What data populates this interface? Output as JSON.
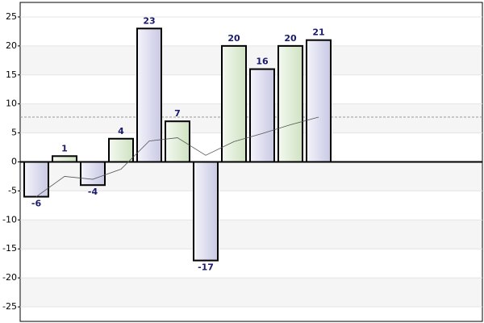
{
  "chart_data": {
    "type": "bar",
    "values": [
      -6,
      1,
      -4,
      4,
      23,
      7,
      -17,
      20,
      16,
      20,
      21
    ],
    "colors": [
      "#d6d6ec",
      "#dcebd2"
    ],
    "trend": [
      -6,
      -2.5,
      -3,
      -1.25,
      3.6,
      4.17,
      1.14,
      3.5,
      4.89,
      6.4,
      7.73
    ],
    "average": 7.73,
    "ylim": [
      -27.5,
      27.5
    ],
    "yticks": [
      -25,
      -20,
      -15,
      -10,
      -5,
      0,
      5,
      10,
      15,
      20,
      25
    ],
    "grid": true
  }
}
